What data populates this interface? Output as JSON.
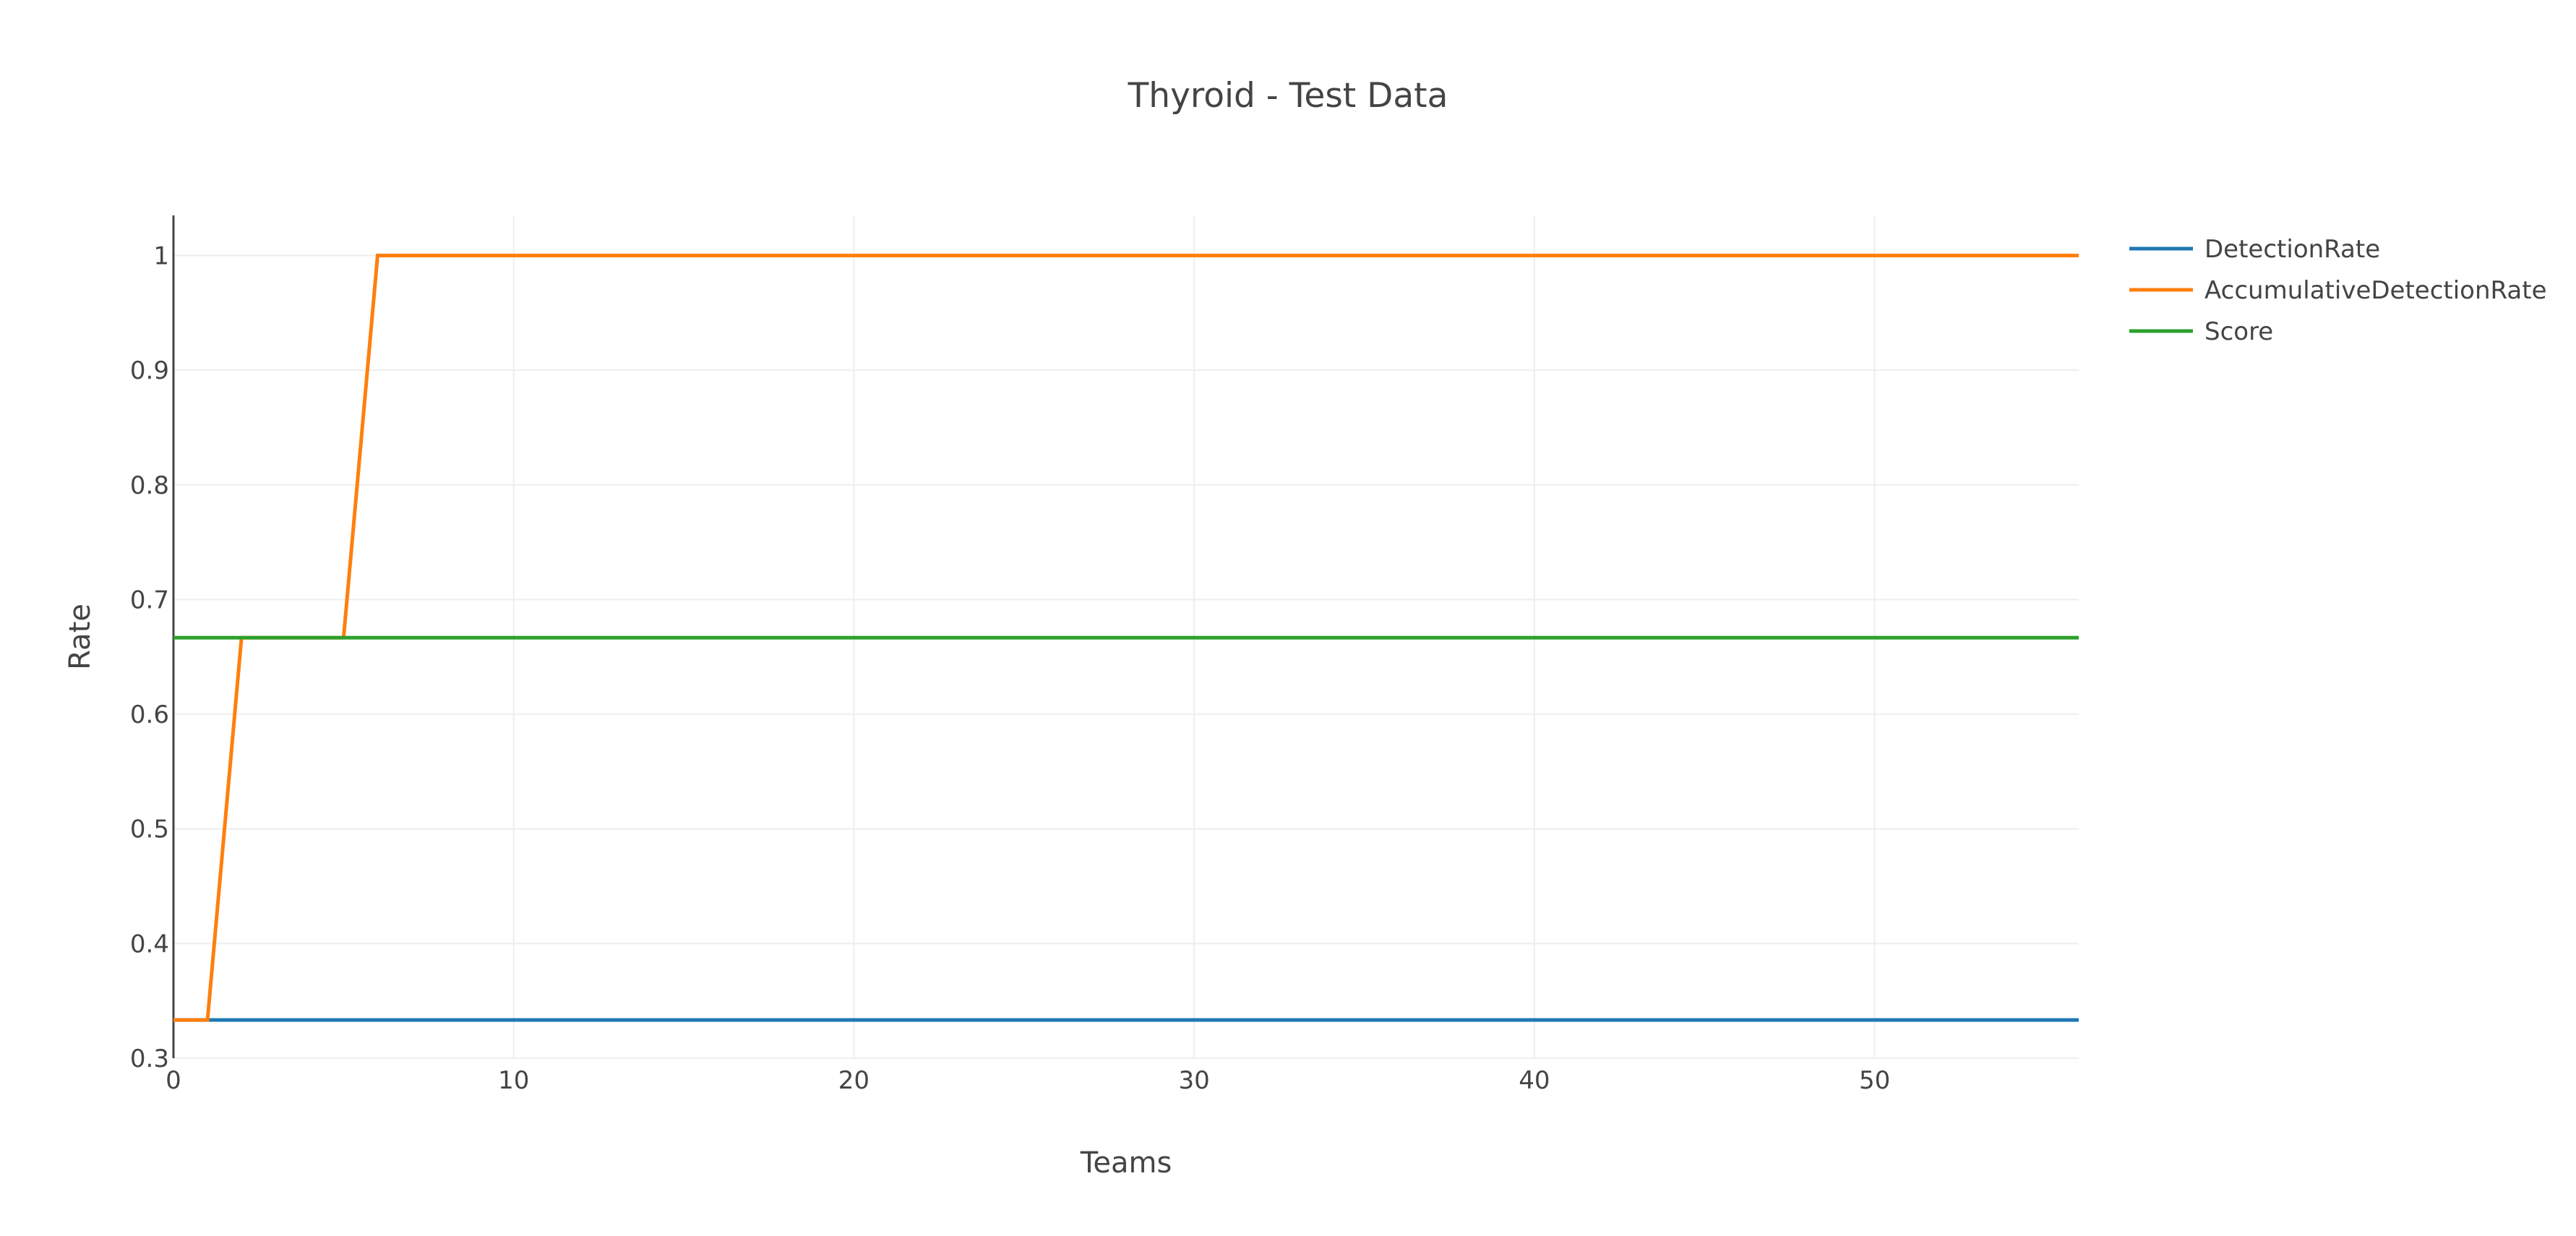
{
  "chart_data": {
    "type": "line",
    "title": "Thyroid - Test Data",
    "xlabel": "Teams",
    "ylabel": "Rate",
    "xlim": [
      0,
      56
    ],
    "ylim": [
      0.3,
      1.035
    ],
    "x_ticks": [
      0,
      10,
      20,
      30,
      40,
      50
    ],
    "y_ticks": [
      0.3,
      0.4,
      0.5,
      0.6,
      0.7,
      0.8,
      0.9,
      1
    ],
    "grid": true,
    "legend_position": "top-right",
    "series": [
      {
        "name": "DetectionRate",
        "color": "#1f77b4",
        "points": [
          [
            0,
            0.3333
          ],
          [
            56,
            0.3333
          ]
        ]
      },
      {
        "name": "AccumulativeDetectionRate",
        "color": "#ff7f0e",
        "points": [
          [
            0,
            0.3333
          ],
          [
            1,
            0.3333
          ],
          [
            2,
            0.6667
          ],
          [
            5,
            0.6667
          ],
          [
            6,
            1
          ],
          [
            56,
            1
          ]
        ]
      },
      {
        "name": "Score",
        "color": "#2ca02c",
        "points": [
          [
            0,
            0.6667
          ],
          [
            56,
            0.6667
          ]
        ]
      }
    ]
  }
}
